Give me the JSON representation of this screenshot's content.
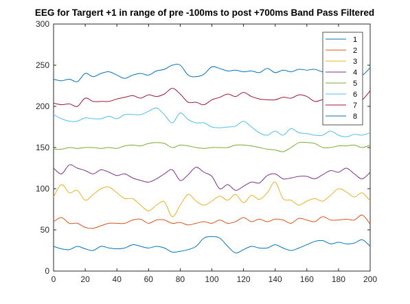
{
  "chart_data": {
    "type": "line",
    "title": "EEG for Targert +1 in range of pre -100ms to post +700ms Band Pass Filtered",
    "xlabel": "",
    "ylabel": "",
    "xlim": [
      0,
      200
    ],
    "ylim": [
      0,
      300
    ],
    "xticks": [
      "0",
      "20",
      "40",
      "60",
      "80",
      "100",
      "120",
      "140",
      "160",
      "180",
      "200"
    ],
    "yticks": [
      "0",
      "50",
      "100",
      "150",
      "200",
      "250",
      "300"
    ],
    "grid": false,
    "legend_position": "top-right",
    "x": [
      0,
      5,
      10,
      15,
      20,
      25,
      30,
      35,
      40,
      45,
      50,
      55,
      60,
      65,
      70,
      75,
      80,
      85,
      90,
      95,
      100,
      105,
      110,
      115,
      120,
      125,
      130,
      135,
      140,
      145,
      150,
      155,
      160,
      165,
      170,
      175,
      180,
      185,
      190,
      195,
      200
    ],
    "series": [
      {
        "name": "1",
        "color": "#0072BD",
        "values": [
          233,
          231,
          233,
          230,
          240,
          236,
          240,
          242,
          238,
          234,
          238,
          240,
          238,
          243,
          245,
          250,
          250,
          238,
          236,
          239,
          248,
          246,
          243,
          244,
          242,
          243,
          241,
          246,
          241,
          244,
          242,
          245,
          244,
          245,
          242,
          243,
          240,
          242,
          240,
          238,
          247
        ]
      },
      {
        "name": "2",
        "color": "#D95319",
        "values": [
          60,
          65,
          58,
          58,
          53,
          52,
          55,
          58,
          58,
          58,
          62,
          63,
          58,
          62,
          62,
          58,
          59,
          56,
          58,
          60,
          58,
          62,
          58,
          60,
          65,
          60,
          63,
          60,
          63,
          62,
          58,
          64,
          62,
          60,
          66,
          62,
          62,
          63,
          62,
          68,
          57
        ]
      },
      {
        "name": "3",
        "color": "#EDB120",
        "values": [
          90,
          105,
          95,
          98,
          86,
          93,
          100,
          102,
          95,
          88,
          88,
          80,
          73,
          80,
          84,
          66,
          80,
          93,
          85,
          80,
          85,
          91,
          86,
          93,
          83,
          92,
          87,
          95,
          108,
          88,
          86,
          80,
          85,
          88,
          85,
          92,
          100,
          96,
          90,
          95,
          85
        ]
      },
      {
        "name": "4",
        "color": "#7E2F8E",
        "values": [
          125,
          118,
          129,
          125,
          122,
          118,
          123,
          120,
          116,
          118,
          113,
          110,
          108,
          112,
          118,
          123,
          110,
          117,
          126,
          120,
          115,
          100,
          105,
          98,
          103,
          108,
          107,
          116,
          118,
          112,
          113,
          115,
          115,
          112,
          117,
          122,
          120,
          125,
          118,
          112,
          120
        ]
      },
      {
        "name": "5",
        "color": "#77AC30",
        "values": [
          148,
          148,
          150,
          149,
          150,
          150,
          149,
          150,
          149,
          152,
          153,
          152,
          155,
          156,
          155,
          150,
          153,
          152,
          150,
          149,
          150,
          150,
          150,
          153,
          153,
          152,
          150,
          148,
          147,
          145,
          150,
          156,
          156,
          155,
          150,
          150,
          152,
          152,
          153,
          150,
          153
        ]
      },
      {
        "name": "6",
        "color": "#4DBEEE",
        "values": [
          190,
          185,
          182,
          182,
          186,
          185,
          185,
          188,
          185,
          190,
          190,
          190,
          194,
          198,
          190,
          180,
          192,
          184,
          180,
          180,
          175,
          174,
          175,
          176,
          182,
          175,
          168,
          165,
          170,
          165,
          173,
          168,
          167,
          165,
          165,
          170,
          165,
          163,
          166,
          165,
          168
        ]
      },
      {
        "name": "7",
        "color": "#A2142F",
        "values": [
          204,
          202,
          203,
          200,
          210,
          206,
          206,
          206,
          209,
          211,
          213,
          210,
          214,
          212,
          215,
          222,
          215,
          205,
          205,
          202,
          208,
          211,
          215,
          212,
          217,
          212,
          209,
          208,
          208,
          211,
          210,
          214,
          212,
          206,
          208,
          208,
          206,
          210,
          205,
          208,
          219
        ]
      },
      {
        "name": "8",
        "color": "#0072BD",
        "values": [
          30,
          27,
          26,
          30,
          27,
          25,
          30,
          28,
          27,
          28,
          32,
          30,
          28,
          30,
          28,
          23,
          24,
          26,
          30,
          40,
          42,
          40,
          30,
          22,
          26,
          30,
          28,
          28,
          32,
          28,
          25,
          28,
          32,
          36,
          37,
          33,
          35,
          33,
          34,
          38,
          30
        ]
      }
    ]
  }
}
